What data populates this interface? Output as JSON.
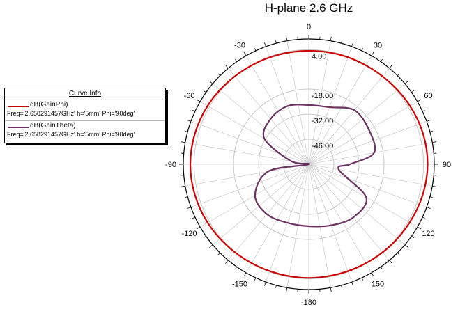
{
  "chart_data": {
    "type": "polar",
    "title": "H-plane 2.6 GHz",
    "angle_ticks": [
      "0",
      "30",
      "60",
      "90",
      "120",
      "150",
      "-180",
      "-150",
      "-120",
      "-90",
      "-60",
      "-30"
    ],
    "angle_tick_values": [
      0,
      30,
      60,
      90,
      120,
      150,
      180,
      -150,
      -120,
      -90,
      -60,
      -30
    ],
    "radial_ticks": [
      "4.00",
      "-18.00",
      "-32.00",
      "-46.00"
    ],
    "radial_tick_values": [
      4,
      -18,
      -32,
      -46
    ],
    "r_range": [
      -60,
      10
    ],
    "grid": true,
    "legend": {
      "title": "Curve Info",
      "placement": "left"
    },
    "series": [
      {
        "name": "dB(GainPhi)",
        "description": "Freq='2.658291457GHz' h='5mm' Phi='90deg'",
        "color": "#cc0000",
        "theta": [
          0,
          15,
          30,
          45,
          60,
          75,
          90,
          105,
          120,
          135,
          150,
          165,
          180,
          195,
          210,
          225,
          240,
          255,
          270,
          285,
          300,
          315,
          330,
          345
        ],
        "r": [
          3.4,
          3.6,
          3.8,
          4.3,
          5.2,
          6.0,
          6.3,
          5.8,
          5.0,
          4.4,
          3.8,
          3.5,
          3.5,
          3.5,
          3.8,
          4.4,
          5.2,
          5.8,
          6.1,
          5.8,
          5.2,
          4.4,
          3.8,
          3.5
        ]
      },
      {
        "name": "dB(GainTheta)",
        "description": "Freq='2.658291457GHz' h='5mm' Phi='90deg'",
        "color": "#6b3262",
        "theta": [
          0,
          20,
          40,
          60,
          80,
          90,
          100,
          120,
          140,
          160,
          180,
          200,
          220,
          240,
          260,
          275,
          280,
          300,
          320,
          340
        ],
        "r": [
          -26.9,
          -26.1,
          -20.5,
          -21.3,
          -23.0,
          -37.0,
          -43.0,
          -23.0,
          -21.3,
          -23.7,
          -25.4,
          -25.2,
          -23.6,
          -25.4,
          -37.0,
          -60.0,
          -50.0,
          -31.4,
          -26.9,
          -25.4
        ]
      }
    ]
  }
}
